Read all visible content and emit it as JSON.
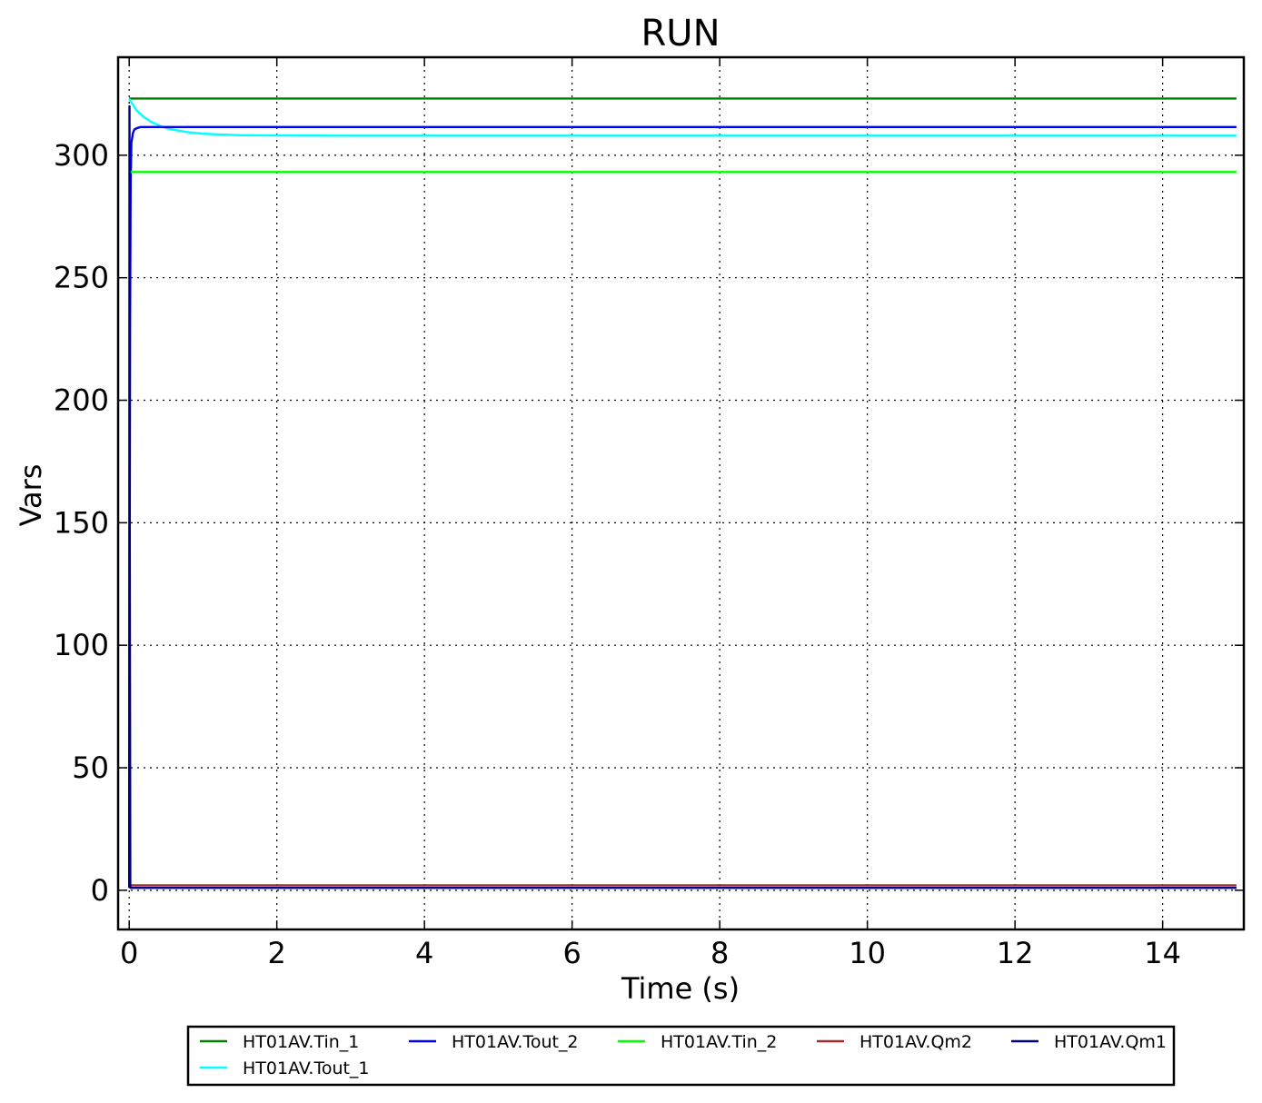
{
  "chart_data": {
    "type": "line",
    "title": "RUN",
    "xlabel": "Time (s)",
    "ylabel": "Vars",
    "xlim": [
      -0.15,
      15.1
    ],
    "ylim": [
      -16,
      340
    ],
    "xticks": [
      0,
      2,
      4,
      6,
      8,
      10,
      12,
      14
    ],
    "xtick_labels": [
      "0",
      "2",
      "4",
      "6",
      "8",
      "10",
      "12",
      "14"
    ],
    "yticks": [
      0,
      50,
      100,
      150,
      200,
      250,
      300
    ],
    "ytick_labels": [
      "0",
      "50",
      "100",
      "150",
      "200",
      "250",
      "300"
    ],
    "grid": true,
    "legend_position": "below",
    "series": [
      {
        "name": "HT01AV.Tin_1",
        "color": "#008000",
        "x": [
          0,
          15
        ],
        "y": [
          323.15,
          323.15
        ]
      },
      {
        "name": "HT01AV.Tout_1",
        "color": "#00ffff",
        "x": [
          0,
          0.1,
          0.2,
          0.3,
          0.4,
          0.5,
          0.6,
          0.8,
          1.0,
          1.2,
          1.5,
          2.0,
          3.0,
          15
        ],
        "y": [
          323,
          318.3,
          315.6,
          313.6,
          312.2,
          311.1,
          310.4,
          309.4,
          308.8,
          308.5,
          308.2,
          308.1,
          308.0,
          308.0
        ]
      },
      {
        "name": "HT01AV.Tout_2",
        "color": "#0000ff",
        "x": [
          0,
          0.005,
          0.012,
          0.02,
          0.03,
          0.05,
          0.07,
          0.1,
          0.15,
          15
        ],
        "y": [
          1,
          100,
          230,
          290,
          305,
          309,
          310.5,
          311,
          311.5,
          311.5
        ]
      },
      {
        "name": "HT01AV.Tin_2",
        "color": "#00ff00",
        "x": [
          0,
          15
        ],
        "y": [
          293.15,
          293.15
        ]
      },
      {
        "name": "HT01AV.Qm2",
        "color": "#a52a2a",
        "x": [
          0,
          15
        ],
        "y": [
          2,
          2
        ]
      },
      {
        "name": "HT01AV.Qm1",
        "color": "#000080",
        "x": [
          0,
          0.004,
          0.008,
          0.015,
          15
        ],
        "y": [
          1,
          320,
          140,
          1,
          1
        ]
      }
    ]
  }
}
